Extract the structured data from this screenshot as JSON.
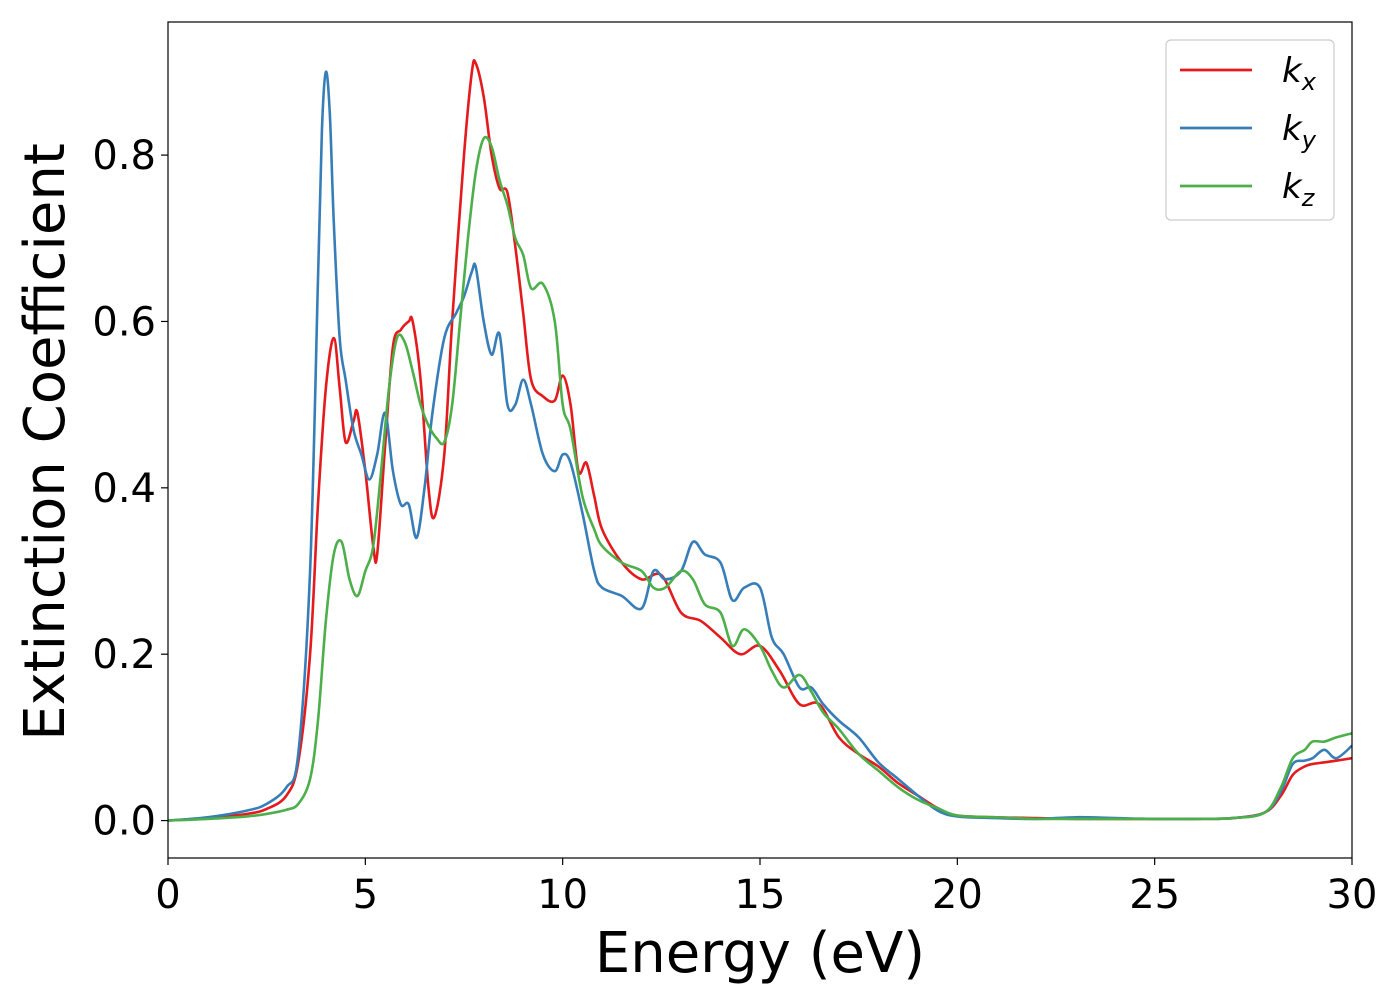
{
  "chart_data": {
    "type": "line",
    "xlabel": "Energy (eV)",
    "ylabel": "Extinction Coefficient",
    "xlim": [
      0,
      30
    ],
    "ylim": [
      -0.045,
      0.96
    ],
    "xticks": [
      0,
      5,
      10,
      15,
      20,
      25,
      30
    ],
    "yticks": [
      0.0,
      0.2,
      0.4,
      0.6,
      0.8
    ],
    "xtick_labels": [
      "0",
      "5",
      "10",
      "15",
      "20",
      "25",
      "30"
    ],
    "ytick_labels": [
      "0.0",
      "0.2",
      "0.4",
      "0.6",
      "0.8"
    ],
    "grid": false,
    "legend_position": "top-right",
    "series": [
      {
        "name": "k_x",
        "label_main": "k",
        "label_sub": "x",
        "color": "#e41a1c",
        "x": [
          0,
          1,
          2,
          2.5,
          3,
          3.3,
          3.6,
          3.8,
          4.0,
          4.2,
          4.35,
          4.5,
          4.7,
          4.8,
          5.0,
          5.2,
          5.3,
          5.5,
          5.7,
          5.9,
          6.1,
          6.2,
          6.4,
          6.6,
          6.75,
          7.0,
          7.2,
          7.5,
          7.7,
          7.8,
          8.0,
          8.2,
          8.4,
          8.6,
          8.8,
          9.0,
          9.2,
          9.5,
          9.8,
          10.0,
          10.2,
          10.4,
          10.6,
          10.8,
          11.0,
          11.5,
          12.0,
          12.5,
          13.0,
          13.5,
          14.0,
          14.5,
          15.0,
          15.5,
          16.0,
          16.5,
          17.0,
          17.5,
          18.0,
          18.5,
          19.0,
          19.5,
          20.0,
          21,
          22,
          23,
          24,
          25,
          26,
          27,
          27.8,
          28.2,
          28.5,
          28.8,
          29.0,
          29.3,
          29.6,
          30.0
        ],
        "y": [
          0.0,
          0.003,
          0.008,
          0.014,
          0.03,
          0.07,
          0.2,
          0.38,
          0.52,
          0.58,
          0.52,
          0.455,
          0.48,
          0.49,
          0.42,
          0.33,
          0.32,
          0.45,
          0.57,
          0.59,
          0.6,
          0.6,
          0.53,
          0.4,
          0.365,
          0.44,
          0.6,
          0.8,
          0.9,
          0.91,
          0.87,
          0.8,
          0.76,
          0.755,
          0.69,
          0.61,
          0.53,
          0.51,
          0.505,
          0.535,
          0.5,
          0.42,
          0.43,
          0.39,
          0.35,
          0.31,
          0.29,
          0.295,
          0.25,
          0.24,
          0.22,
          0.2,
          0.21,
          0.18,
          0.14,
          0.14,
          0.1,
          0.08,
          0.065,
          0.045,
          0.03,
          0.015,
          0.006,
          0.004,
          0.003,
          0.002,
          0.002,
          0.002,
          0.002,
          0.003,
          0.01,
          0.03,
          0.055,
          0.065,
          0.068,
          0.07,
          0.072,
          0.075
        ]
      },
      {
        "name": "k_y",
        "label_main": "k",
        "label_sub": "y",
        "color": "#377eb8",
        "x": [
          0,
          1,
          2,
          2.5,
          3,
          3.3,
          3.6,
          3.8,
          3.9,
          4.0,
          4.1,
          4.2,
          4.35,
          4.5,
          4.7,
          4.9,
          5.1,
          5.3,
          5.5,
          5.7,
          5.9,
          6.1,
          6.3,
          6.5,
          6.7,
          7.0,
          7.3,
          7.5,
          7.7,
          7.8,
          8.0,
          8.2,
          8.4,
          8.6,
          8.8,
          9.0,
          9.2,
          9.5,
          9.8,
          10.0,
          10.2,
          10.5,
          10.8,
          11.0,
          11.5,
          12.0,
          12.3,
          12.6,
          13.0,
          13.3,
          13.6,
          14.0,
          14.3,
          14.6,
          15.0,
          15.3,
          15.6,
          16.0,
          16.3,
          16.6,
          17.0,
          17.5,
          18.0,
          18.5,
          19.0,
          19.5,
          20.0,
          21,
          22,
          23,
          24,
          25,
          26,
          27,
          27.8,
          28.2,
          28.5,
          28.8,
          29.0,
          29.3,
          29.6,
          30.0
        ],
        "y": [
          0.0,
          0.004,
          0.012,
          0.02,
          0.04,
          0.08,
          0.3,
          0.65,
          0.83,
          0.9,
          0.85,
          0.72,
          0.58,
          0.53,
          0.47,
          0.44,
          0.41,
          0.44,
          0.49,
          0.42,
          0.38,
          0.38,
          0.34,
          0.4,
          0.49,
          0.58,
          0.61,
          0.63,
          0.66,
          0.665,
          0.6,
          0.56,
          0.585,
          0.5,
          0.5,
          0.53,
          0.5,
          0.44,
          0.42,
          0.44,
          0.43,
          0.37,
          0.3,
          0.28,
          0.27,
          0.255,
          0.3,
          0.29,
          0.3,
          0.335,
          0.32,
          0.31,
          0.265,
          0.28,
          0.28,
          0.22,
          0.2,
          0.16,
          0.16,
          0.14,
          0.12,
          0.1,
          0.07,
          0.05,
          0.03,
          0.012,
          0.005,
          0.003,
          0.002,
          0.004,
          0.003,
          0.002,
          0.002,
          0.003,
          0.01,
          0.035,
          0.068,
          0.072,
          0.075,
          0.085,
          0.075,
          0.09
        ]
      },
      {
        "name": "k_z",
        "label_main": "k",
        "label_sub": "z",
        "color": "#4daf4a",
        "x": [
          0,
          1,
          2,
          2.5,
          3,
          3.3,
          3.6,
          3.8,
          4.0,
          4.2,
          4.4,
          4.6,
          4.8,
          5.0,
          5.2,
          5.4,
          5.6,
          5.8,
          6.0,
          6.2,
          6.4,
          6.6,
          6.8,
          7.0,
          7.2,
          7.4,
          7.6,
          7.8,
          8.0,
          8.2,
          8.4,
          8.6,
          8.8,
          9.0,
          9.2,
          9.5,
          9.8,
          10.0,
          10.2,
          10.5,
          10.8,
          11.0,
          11.5,
          12.0,
          12.3,
          12.6,
          13.0,
          13.3,
          13.6,
          14.0,
          14.3,
          14.6,
          15.0,
          15.3,
          15.6,
          16.0,
          16.3,
          16.6,
          17.0,
          17.5,
          18.0,
          18.5,
          19.0,
          19.5,
          20.0,
          21,
          22,
          23,
          24,
          25,
          26,
          27,
          27.8,
          28.2,
          28.5,
          28.8,
          29.0,
          29.3,
          29.6,
          30.0
        ],
        "y": [
          0.0,
          0.002,
          0.005,
          0.008,
          0.013,
          0.02,
          0.05,
          0.12,
          0.24,
          0.32,
          0.335,
          0.29,
          0.27,
          0.3,
          0.33,
          0.42,
          0.52,
          0.58,
          0.575,
          0.54,
          0.5,
          0.475,
          0.46,
          0.455,
          0.5,
          0.6,
          0.7,
          0.78,
          0.82,
          0.81,
          0.77,
          0.74,
          0.7,
          0.68,
          0.64,
          0.645,
          0.6,
          0.5,
          0.47,
          0.39,
          0.35,
          0.33,
          0.31,
          0.3,
          0.28,
          0.28,
          0.3,
          0.29,
          0.26,
          0.25,
          0.21,
          0.23,
          0.21,
          0.18,
          0.16,
          0.175,
          0.155,
          0.13,
          0.11,
          0.08,
          0.06,
          0.04,
          0.025,
          0.015,
          0.006,
          0.004,
          0.002,
          0.002,
          0.002,
          0.002,
          0.002,
          0.003,
          0.01,
          0.04,
          0.075,
          0.085,
          0.095,
          0.095,
          0.1,
          0.105
        ]
      }
    ]
  }
}
